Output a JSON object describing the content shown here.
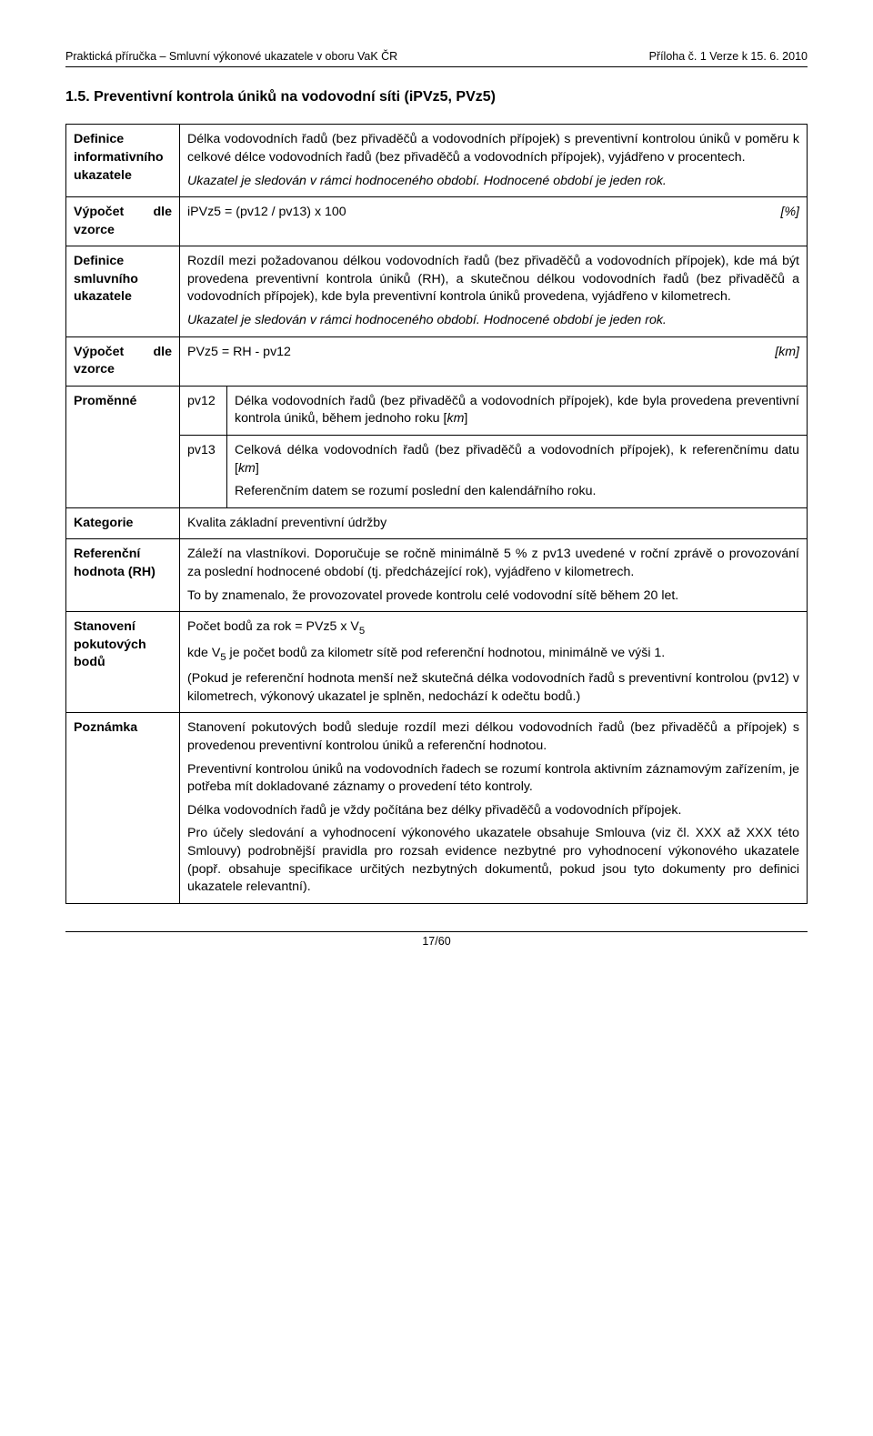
{
  "header": {
    "left": "Praktická příručka – Smluvní výkonové ukazatele v oboru VaK ČR",
    "right": "Příloha č. 1 Verze k 15. 6. 2010"
  },
  "title": "1.5.   Preventivní kontrola úniků na vodovodní síti (iPVz5, PVz5)",
  "rows": {
    "defInfo": {
      "label": "Definice informativního ukazatele",
      "p1": "Délka vodovodních řadů (bez přivaděčů a vodovodních přípojek) s preventivní kontrolou úniků v poměru k celkové délce vodovodních řadů (bez přivaděčů a vodovodních přípojek), vyjádřeno v procentech.",
      "p2": "Ukazatel je sledován v rámci hodnoceného období. Hodnocené období je jeden rok."
    },
    "calc1": {
      "label": "Výpočet dle vzorce",
      "formula": "iPVz5 = (pv12 / pv13) x 100",
      "unit": "[%]"
    },
    "defSml": {
      "label": "Definice smluvního ukazatele",
      "p1": "Rozdíl mezi požadovanou délkou vodovodních řadů (bez přivaděčů a vodovodních přípojek), kde má být provedena preventivní kontrola úniků (RH), a skutečnou délkou vodovodních řadů (bez přivaděčů a vodovodních přípojek), kde byla preventivní kontrola úniků provedena, vyjádřeno v kilometrech.",
      "p2": "Ukazatel je sledován v rámci hodnoceného období. Hodnocené období je jeden rok."
    },
    "calc2": {
      "label": "Výpočet dle vzorce",
      "formula": "PVz5 = RH - pv12",
      "unit": "[km]"
    },
    "vars": {
      "label": "Proměnné",
      "v1": {
        "name": "pv12",
        "desc": "Délka vodovodních řadů (bez přivaděčů a vodovodních přípojek), kde byla provedena preventivní kontrola úniků, během jednoho roku [",
        "unit": "km",
        "tail": "]"
      },
      "v2": {
        "name": "pv13",
        "desc": "Celková délka vodovodních řadů (bez přivaděčů a vodovodních přípojek), k referenčnímu datu [",
        "unit": "km",
        "tail": "]",
        "p2": "Referenčním datem se rozumí poslední den kalendářního roku."
      }
    },
    "kat": {
      "label": "Kategorie",
      "text": "Kvalita základní preventivní údržby"
    },
    "ref": {
      "label": "Referenční hodnota (RH)",
      "p1": "Záleží na vlastníkovi. Doporučuje se ročně minimálně 5 % z pv13 uvedené v roční zprávě o provozování za poslední hodnocené období (tj. předcházející rok), vyjádřeno v kilometrech.",
      "p2": "To by znamenalo, že provozovatel provede kontrolu celé vodovodní sítě během 20 let."
    },
    "stan": {
      "label": "Stanovení pokutových bodů",
      "p1a": "Počet bodů za rok = PVz5 x V",
      "p1sub": "5",
      "p2a": "kde V",
      "p2sub": "5",
      "p2b": " je počet bodů za kilometr sítě pod referenční hodnotou, minimálně ve výši 1.",
      "p3": "(Pokud je referenční hodnota menší než skutečná délka vodovodních řadů s preventivní kontrolou (pv12) v kilometrech, výkonový ukazatel je splněn, nedochází k odečtu bodů.)"
    },
    "poz": {
      "label": "Poznámka",
      "p1": "Stanovení pokutových bodů sleduje rozdíl mezi délkou vodovodních řadů (bez přivaděčů a přípojek) s provedenou preventivní kontrolou úniků a referenční hodnotou.",
      "p2": "Preventivní kontrolou úniků na vodovodních řadech se rozumí kontrola aktivním záznamovým zařízením, je potřeba mít dokladované záznamy o provedení této kontroly.",
      "p3": "Délka vodovodních řadů je vždy počítána bez délky přivaděčů a vodovodních přípojek.",
      "p4": "Pro účely sledování a vyhodnocení výkonového ukazatele obsahuje Smlouva (viz čl. XXX až XXX této Smlouvy) podrobnější pravidla pro rozsah evidence nezbytné pro vyhodnocení výkonového ukazatele (popř. obsahuje  specifikace určitých nezbytných dokumentů, pokud jsou tyto dokumenty pro definici ukazatele relevantní)."
    }
  },
  "footer": "17/60"
}
